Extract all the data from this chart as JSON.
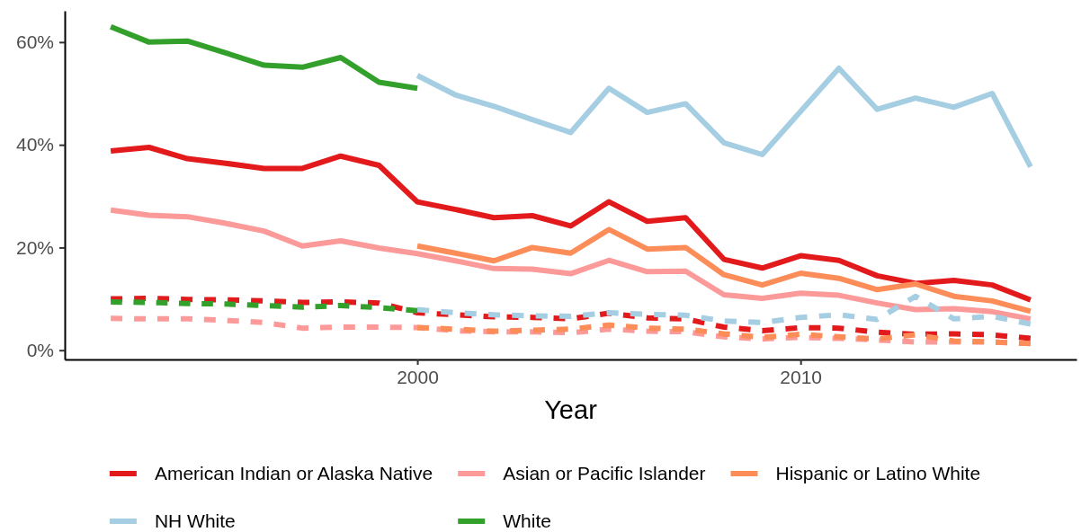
{
  "chart_data": {
    "type": "line",
    "xlabel": "Year",
    "xlim": [
      1990.8,
      2017.2
    ],
    "xticks": [
      2000,
      2010
    ],
    "ylim": [
      -1.8,
      66.1
    ],
    "yticks": [
      {
        "value": 0,
        "label": "0%"
      },
      {
        "value": 20,
        "label": "20%"
      },
      {
        "value": 40,
        "label": "40%"
      },
      {
        "value": 60,
        "label": "60%"
      }
    ],
    "legend": "bottom",
    "x": [
      1992,
      1993,
      1994,
      1995,
      1996,
      1997,
      1998,
      1999,
      2000,
      2001,
      2002,
      2003,
      2004,
      2005,
      2006,
      2007,
      2008,
      2009,
      2010,
      2011,
      2012,
      2013,
      2014,
      2015,
      2016
    ],
    "series": [
      {
        "name": "American Indian or Alaska Native",
        "color": "#e31a1c",
        "line_style": "solid",
        "values": [
          38.8,
          39.5,
          37.3,
          36.4,
          35.4,
          35.4,
          37.8,
          36.0,
          28.9,
          27.4,
          25.8,
          26.2,
          24.2,
          28.9,
          25.1,
          25.8,
          17.7,
          16.0,
          18.4,
          17.5,
          14.5,
          13.0,
          13.6,
          12.7,
          9.8
        ]
      },
      {
        "name": "Asian or Pacific Islander",
        "color": "#fb9a99",
        "line_style": "solid",
        "values": [
          27.3,
          26.3,
          26.0,
          24.7,
          23.2,
          20.3,
          21.3,
          19.9,
          18.8,
          17.4,
          15.9,
          15.8,
          14.9,
          17.5,
          15.3,
          15.4,
          10.8,
          10.1,
          11.1,
          10.7,
          9.2,
          7.9,
          8.1,
          7.5,
          6.1
        ]
      },
      {
        "name": "Hispanic or Latino White",
        "color": "#fc8d59",
        "line_style": "solid",
        "x": [
          2000,
          2001,
          2002,
          2003,
          2004,
          2005,
          2006,
          2007,
          2008,
          2009,
          2010,
          2011,
          2012,
          2013,
          2014,
          2015,
          2016
        ],
        "values": [
          20.3,
          18.9,
          17.4,
          20.0,
          18.9,
          23.5,
          19.7,
          20.0,
          14.7,
          12.7,
          15.0,
          14.0,
          11.8,
          12.9,
          10.5,
          9.6,
          7.6
        ]
      },
      {
        "name": "NH White",
        "color": "#a6cee3",
        "line_style": "solid",
        "x": [
          2000,
          2001,
          2002,
          2003,
          2004,
          2005,
          2006,
          2007,
          2008,
          2009,
          2010,
          2011,
          2012,
          2013,
          2014,
          2015,
          2016
        ],
        "values": [
          53.5,
          49.7,
          47.5,
          44.9,
          42.4,
          51.0,
          46.3,
          48.0,
          40.4,
          38.1,
          46.5,
          54.9,
          46.9,
          49.1,
          47.3,
          50.0,
          35.7
        ]
      },
      {
        "name": "White",
        "color": "#33a02c",
        "line_style": "solid",
        "x": [
          1992,
          1993,
          1994,
          1995,
          1996,
          1997,
          1998,
          1999,
          2000
        ],
        "values": [
          63.0,
          60.0,
          60.2,
          57.9,
          55.5,
          55.1,
          57.0,
          52.2,
          51.0
        ]
      },
      {
        "color": "#e31a1c",
        "line_style": "dashed",
        "values": [
          10.0,
          10.1,
          9.9,
          9.8,
          9.6,
          9.3,
          9.4,
          9.2,
          7.3,
          6.9,
          6.5,
          6.4,
          6.1,
          7.2,
          6.3,
          6.1,
          4.5,
          3.8,
          4.4,
          4.3,
          3.5,
          3.1,
          3.2,
          3.0,
          2.3
        ]
      },
      {
        "color": "#fb9a99",
        "line_style": "dashed",
        "values": [
          6.2,
          6.1,
          6.1,
          5.8,
          5.4,
          4.3,
          4.5,
          4.5,
          4.4,
          3.8,
          3.6,
          3.6,
          3.4,
          4.1,
          3.7,
          3.6,
          2.6,
          2.2,
          2.5,
          2.3,
          2.0,
          1.6,
          1.6,
          1.6,
          1.3
        ]
      },
      {
        "color": "#fc8d59",
        "line_style": "dashed",
        "x": [
          2000,
          2001,
          2002,
          2003,
          2004,
          2005,
          2006,
          2007,
          2008,
          2009,
          2010,
          2011,
          2012,
          2013,
          2014,
          2015,
          2016
        ],
        "values": [
          4.4,
          4.1,
          3.7,
          3.9,
          4.1,
          4.9,
          4.3,
          4.1,
          3.2,
          2.5,
          3.1,
          2.6,
          2.2,
          3.0,
          1.8,
          1.6,
          1.3
        ]
      },
      {
        "color": "#a6cee3",
        "line_style": "dashed",
        "x": [
          2000,
          2001,
          2002,
          2003,
          2004,
          2005,
          2006,
          2007,
          2008,
          2009,
          2010,
          2011,
          2012,
          2013,
          2014,
          2015,
          2016
        ],
        "values": [
          7.9,
          7.3,
          6.9,
          6.7,
          6.6,
          7.3,
          7.0,
          6.8,
          5.7,
          5.4,
          6.4,
          6.9,
          6.0,
          10.5,
          6.1,
          6.6,
          5.1
        ]
      },
      {
        "color": "#33a02c",
        "line_style": "dashed",
        "x": [
          1992,
          1993,
          1994,
          1995,
          1996,
          1997,
          1998,
          1999,
          2000
        ],
        "values": [
          9.4,
          9.3,
          9.1,
          9.0,
          8.7,
          8.4,
          8.7,
          8.3,
          7.7
        ]
      }
    ]
  }
}
